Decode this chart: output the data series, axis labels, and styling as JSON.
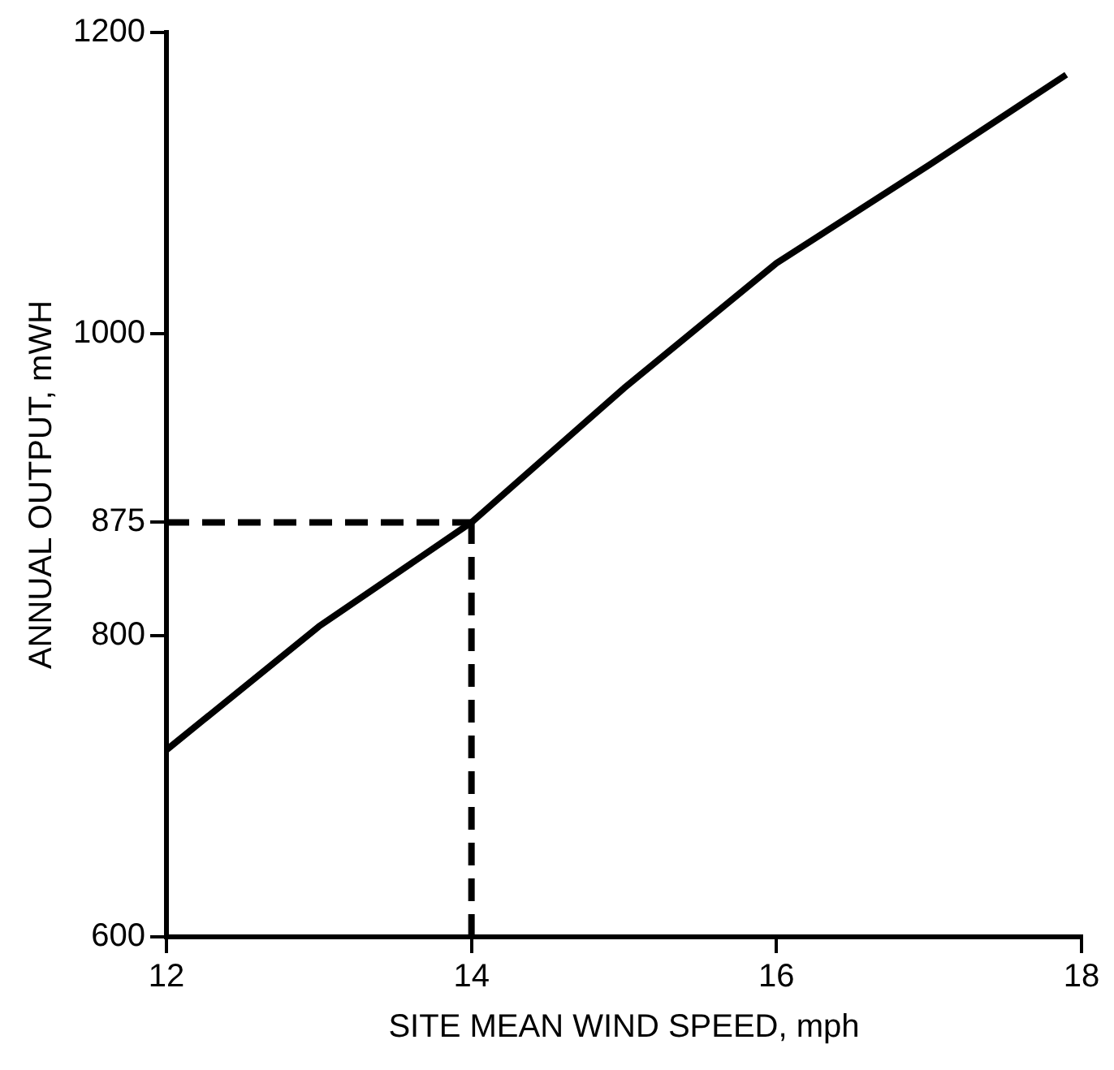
{
  "chart_data": {
    "type": "line",
    "xlabel": "SITE MEAN WIND SPEED, mph",
    "ylabel": "ANNUAL OUTPUT, mWH",
    "x": [
      12,
      13,
      14,
      15,
      16,
      17,
      17.9
    ],
    "series": [
      {
        "color": "#000000",
        "values": [
          724,
          806,
          875,
          964,
          1047,
          1112,
          1172
        ]
      }
    ],
    "xlim": [
      12,
      18
    ],
    "xticks": [
      12,
      14,
      16,
      18
    ],
    "ylim": [
      600,
      1200
    ],
    "yticks": [
      600,
      800,
      875,
      1000,
      1200
    ],
    "ref_lines": [
      {
        "axis": "x",
        "value": 14,
        "line_style": "dashed",
        "color": "#000000"
      },
      {
        "axis": "y",
        "value": 875,
        "line_style": "dashed",
        "color": "#000000"
      }
    ],
    "grid": false,
    "legend": false,
    "marker": "none",
    "line_style": "solid"
  }
}
